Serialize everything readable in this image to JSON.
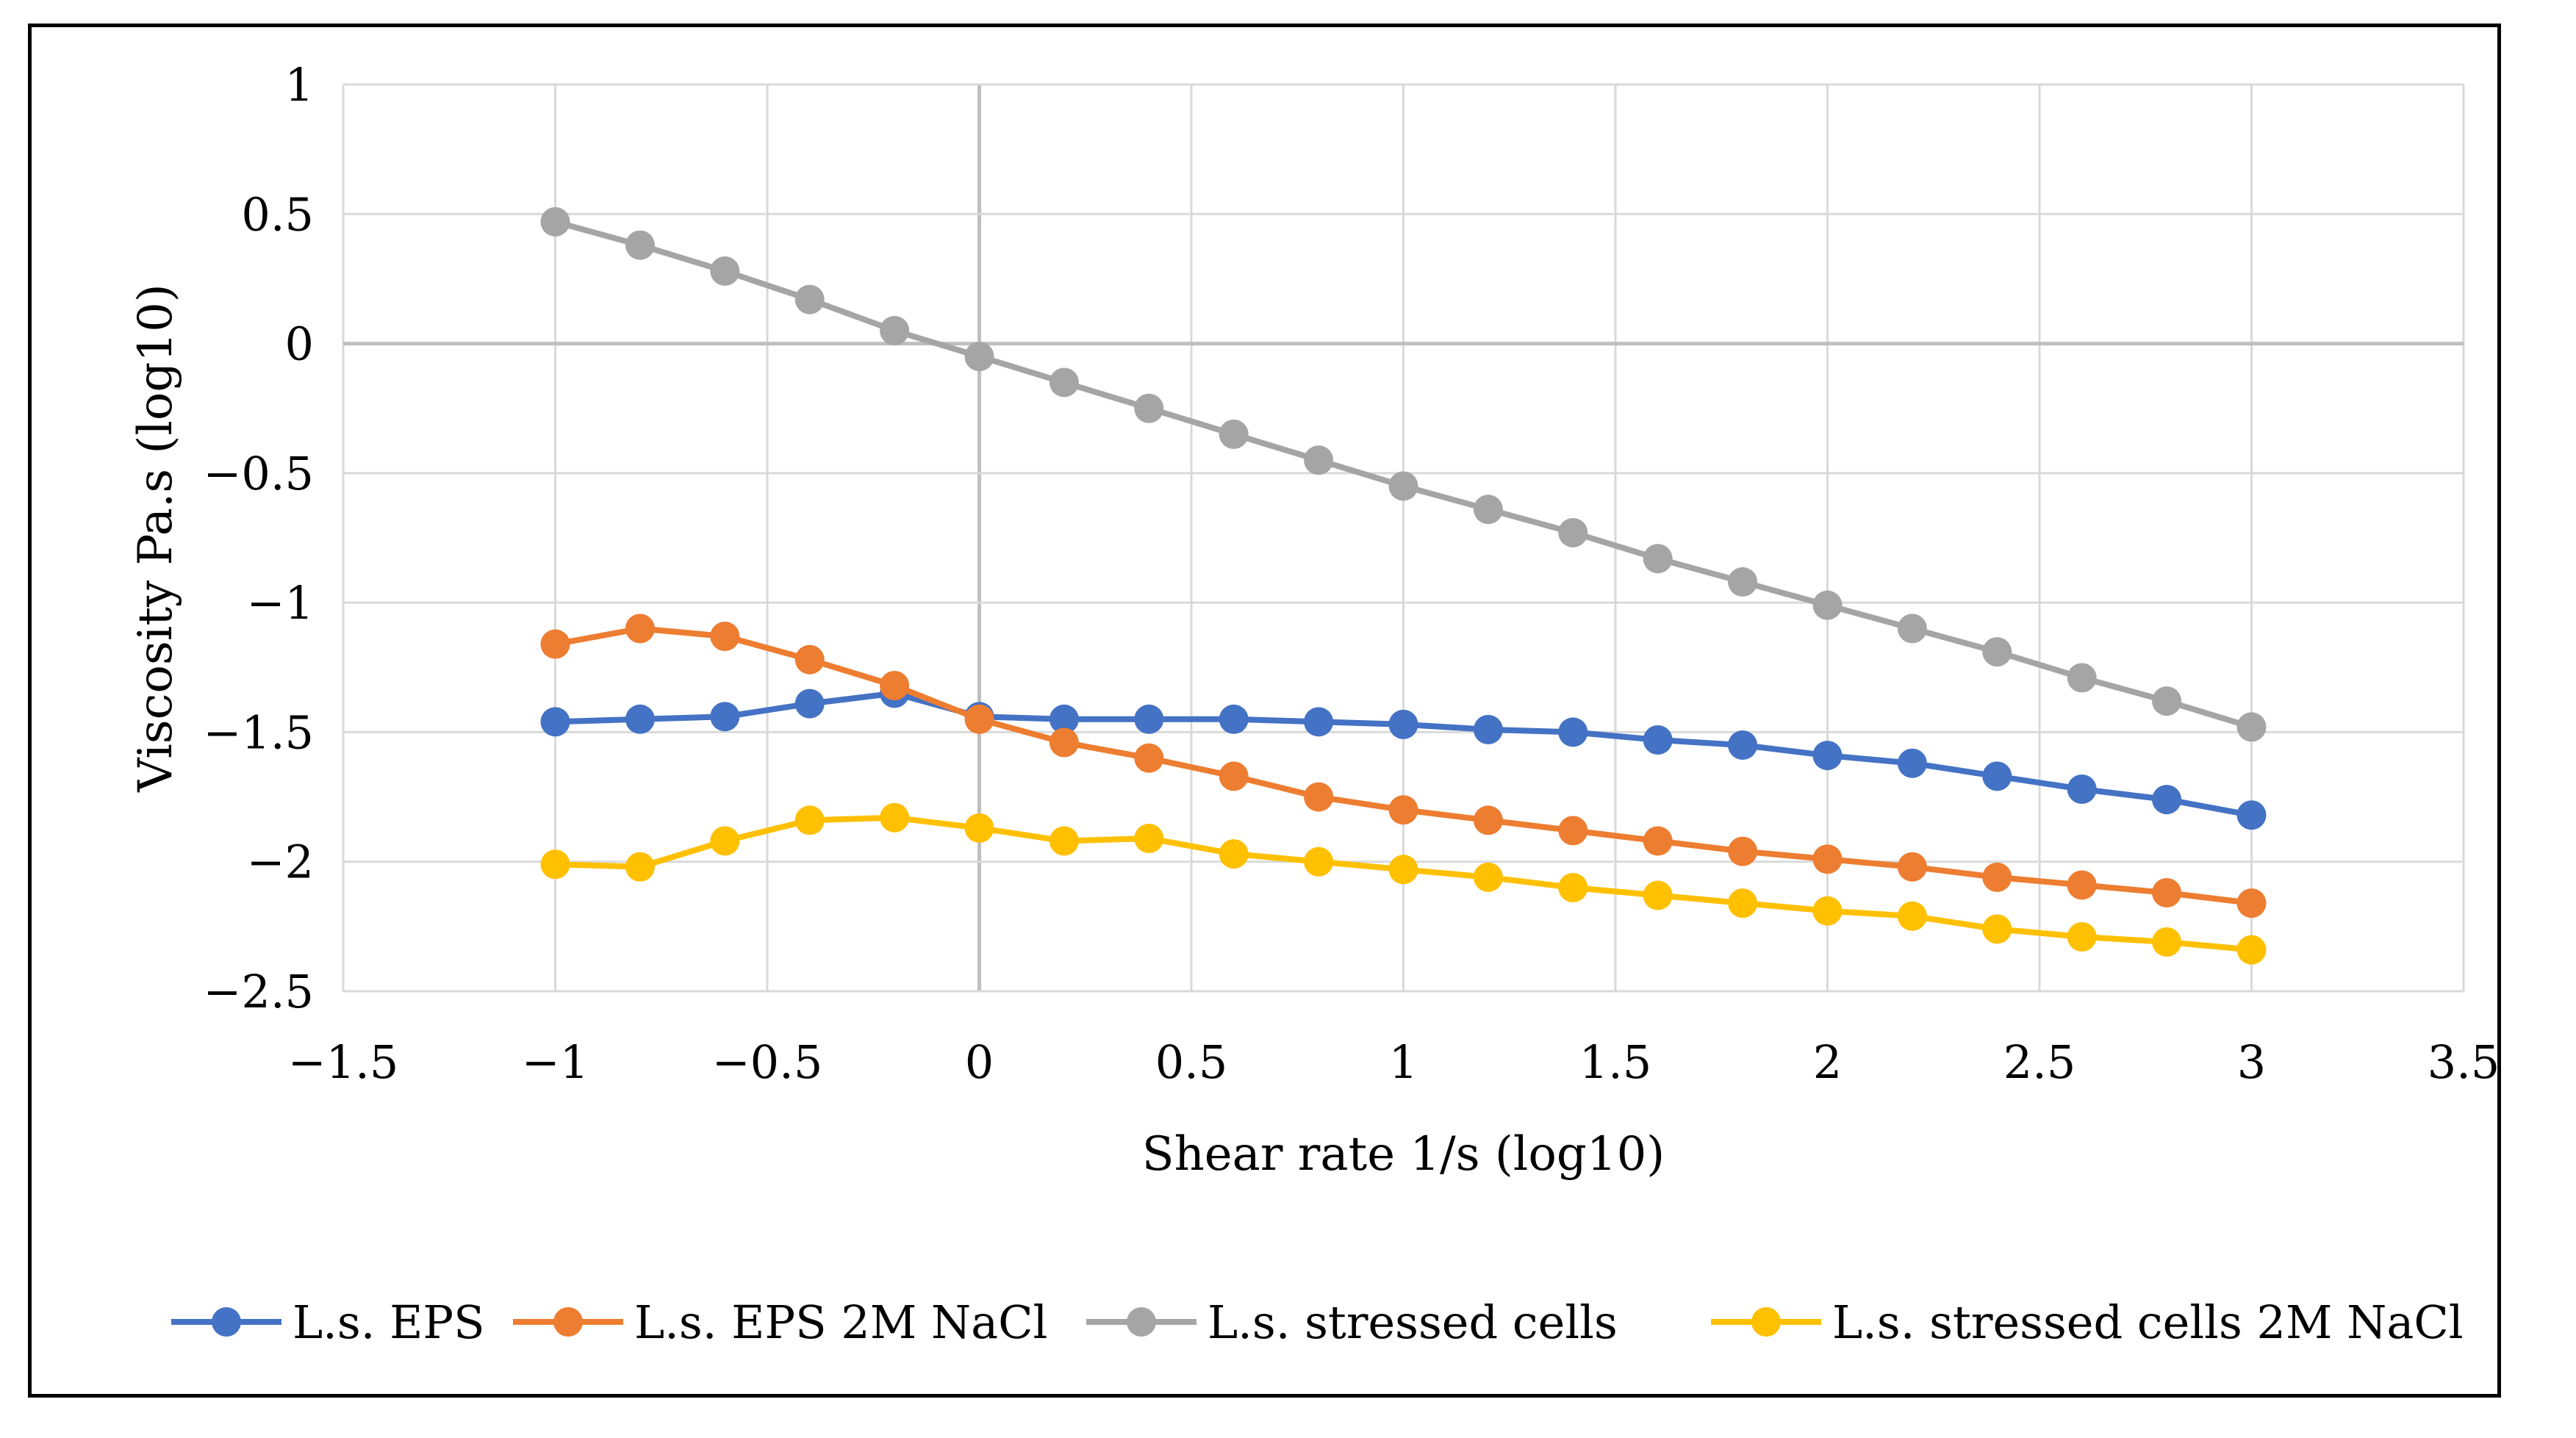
{
  "chart_data": {
    "type": "scatter",
    "mode": "lines+markers",
    "title": "",
    "xlabel": "Shear rate 1/s (log10)",
    "ylabel": "Viscosity Pa.s (log10)",
    "xlim": [
      -1.5,
      3.5
    ],
    "ylim": [
      -2.5,
      1
    ],
    "xticks": [
      -1.5,
      -1,
      -0.5,
      0,
      0.5,
      1,
      1.5,
      2,
      2.5,
      3,
      3.5
    ],
    "yticks": [
      1,
      0.5,
      0,
      -0.5,
      -1,
      -1.5,
      -2,
      -2.5
    ],
    "xtick_labels": [
      "−1.5",
      "−1",
      "−0.5",
      "0",
      "0.5",
      "1",
      "1.5",
      "2",
      "2.5",
      "3",
      "3.5"
    ],
    "ytick_labels": [
      "1",
      "0.5",
      "0",
      "−0.5",
      "−1",
      "−1.5",
      "−2",
      "−2.5"
    ],
    "grid": true,
    "legend_position": "bottom",
    "x": [
      -1,
      -0.8,
      -0.6,
      -0.4,
      -0.2,
      0,
      0.2,
      0.4,
      0.6,
      0.8,
      1,
      1.2,
      1.4,
      1.6,
      1.8,
      2,
      2.2,
      2.4,
      2.6,
      2.8,
      3
    ],
    "series": [
      {
        "name": "L.s. EPS",
        "color": "#4472C4",
        "values": [
          -1.46,
          -1.45,
          -1.44,
          -1.39,
          -1.35,
          -1.44,
          -1.45,
          -1.45,
          -1.45,
          -1.46,
          -1.47,
          -1.49,
          -1.5,
          -1.53,
          -1.55,
          -1.59,
          -1.62,
          -1.67,
          -1.72,
          -1.76,
          -1.82
        ]
      },
      {
        "name": "L.s. EPS 2M NaCl",
        "color": "#ED7D31",
        "values": [
          -1.16,
          -1.1,
          -1.13,
          -1.22,
          -1.32,
          -1.45,
          -1.54,
          -1.6,
          -1.67,
          -1.75,
          -1.8,
          -1.84,
          -1.88,
          -1.92,
          -1.96,
          -1.99,
          -2.02,
          -2.06,
          -2.09,
          -2.12,
          -2.16
        ]
      },
      {
        "name": "L.s. stressed cells",
        "color": "#A5A5A5",
        "values": [
          0.47,
          0.38,
          0.28,
          0.17,
          0.05,
          -0.05,
          -0.15,
          -0.25,
          -0.35,
          -0.45,
          -0.55,
          -0.64,
          -0.73,
          -0.83,
          -0.92,
          -1.01,
          -1.1,
          -1.19,
          -1.29,
          -1.38,
          -1.48
        ]
      },
      {
        "name": "L.s. stressed cells 2M NaCl",
        "color": "#FFC000",
        "values": [
          -2.01,
          -2.02,
          -1.92,
          -1.84,
          -1.83,
          -1.87,
          -1.92,
          -1.91,
          -1.97,
          -2.0,
          -2.03,
          -2.06,
          -2.1,
          -2.13,
          -2.16,
          -2.19,
          -2.21,
          -2.26,
          -2.29,
          -2.31,
          -2.34
        ]
      }
    ]
  },
  "colors": {
    "grid": "#D9D9D9",
    "zero_axis": "#BFBFBF",
    "frame": "#000000",
    "text": "#000000"
  }
}
